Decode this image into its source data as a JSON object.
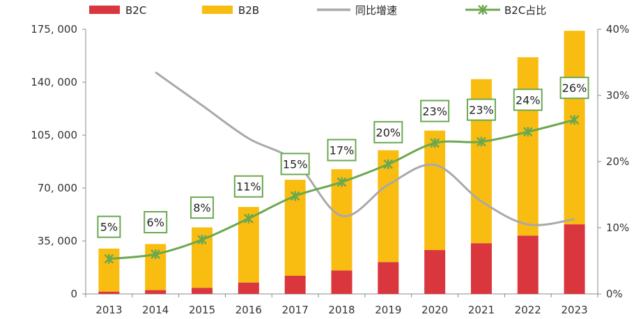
{
  "chart_data": {
    "type": "bar",
    "stacked": true,
    "categories": [
      "2013",
      "2014",
      "2015",
      "2016",
      "2017",
      "2018",
      "2019",
      "2020",
      "2021",
      "2022",
      "2023"
    ],
    "series": [
      {
        "name": "B2C",
        "kind": "bar",
        "axis": "left",
        "color": "#d9363e",
        "values": [
          1500,
          2500,
          4000,
          7500,
          12000,
          15500,
          21000,
          29000,
          33500,
          38500,
          46000
        ]
      },
      {
        "name": "B2B",
        "kind": "bar",
        "axis": "left",
        "color": "#f9bd12",
        "values": [
          28500,
          30500,
          40000,
          50000,
          63500,
          67000,
          74000,
          79000,
          108500,
          118000,
          128000
        ]
      },
      {
        "name": "同比增速",
        "kind": "line",
        "axis": "right",
        "color": "#a9a9a9",
        "values": [
          null,
          33.5,
          28.5,
          23.5,
          20.0,
          11.8,
          16.5,
          19.5,
          14.0,
          10.5,
          11.3
        ]
      },
      {
        "name": "B2C占比",
        "kind": "line",
        "axis": "right",
        "color": "#6aa84f",
        "marker": "x",
        "values": [
          5.3,
          6.0,
          8.2,
          11.4,
          14.8,
          16.9,
          19.6,
          22.8,
          23.0,
          24.5,
          26.3
        ]
      }
    ],
    "data_labels": [
      "5%",
      "6%",
      "8%",
      "11%",
      "15%",
      "17%",
      "20%",
      "23%",
      "23%",
      "24%",
      "26%"
    ],
    "y_left": {
      "min": 0,
      "max": 175000,
      "ticks": [
        0,
        35000,
        70000,
        105000,
        140000,
        175000
      ],
      "tick_labels": [
        "0",
        "35, 000",
        "70, 000",
        "105, 000",
        "140, 000",
        "175, 000"
      ]
    },
    "y_right": {
      "min": 0,
      "max": 40,
      "ticks": [
        0,
        10,
        20,
        30,
        40
      ],
      "tick_labels": [
        "0%",
        "10%",
        "20%",
        "30%",
        "40%"
      ]
    },
    "legend_position": "top",
    "grid": false,
    "colors": {
      "b2c": "#d9363e",
      "b2b": "#f9bd12",
      "growth": "#a9a9a9",
      "share": "#6aa84f",
      "axis": "#888888"
    }
  }
}
